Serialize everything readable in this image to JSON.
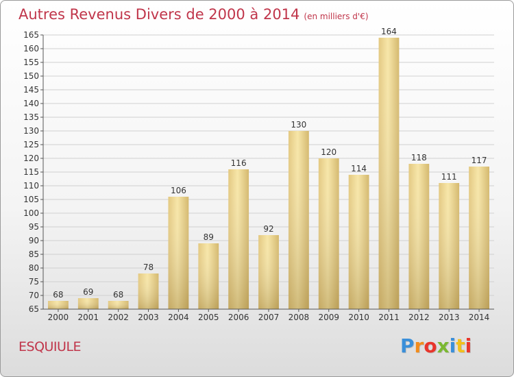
{
  "title": "Autres Revenus Divers de 2000 à 2014",
  "subtitle": "(en milliers d'€)",
  "commune": "ESQUIULE",
  "logo": {
    "text": "Proxiti",
    "colors": [
      "#3a8fd9",
      "#f28c1c",
      "#e8352b",
      "#7bb832",
      "#3a8fd9",
      "#f2c01c",
      "#e8352b"
    ]
  },
  "colors": {
    "title": "#c0354a",
    "bar_light": "#f6e3a3",
    "bar_dark": "#c9ad65",
    "grid": "#d0d0d0",
    "axis": "#555555"
  },
  "chart_data": {
    "type": "bar",
    "categories": [
      "2000",
      "2001",
      "2002",
      "2003",
      "2004",
      "2005",
      "2006",
      "2007",
      "2008",
      "2009",
      "2010",
      "2011",
      "2012",
      "2013",
      "2014"
    ],
    "values": [
      68,
      69,
      68,
      78,
      106,
      89,
      116,
      92,
      130,
      120,
      114,
      164,
      118,
      111,
      117
    ],
    "ylim": [
      65,
      165
    ],
    "yticks": [
      65,
      70,
      75,
      80,
      85,
      90,
      95,
      100,
      105,
      110,
      115,
      120,
      125,
      130,
      135,
      140,
      145,
      150,
      155,
      160,
      165
    ],
    "xlabel": "",
    "ylabel": "",
    "grid": true
  }
}
